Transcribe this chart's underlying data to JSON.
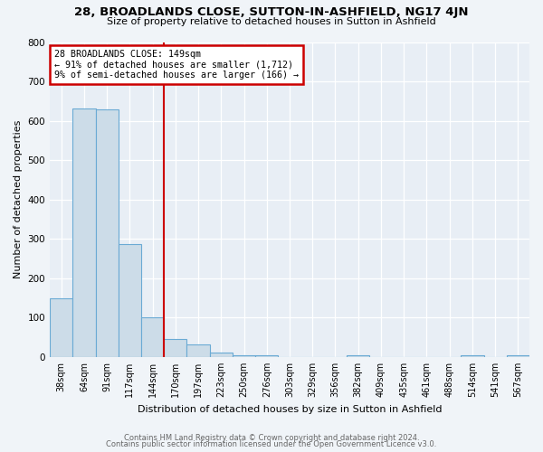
{
  "title": "28, BROADLANDS CLOSE, SUTTON-IN-ASHFIELD, NG17 4JN",
  "subtitle": "Size of property relative to detached houses in Sutton in Ashfield",
  "xlabel": "Distribution of detached houses by size in Sutton in Ashfield",
  "ylabel": "Number of detached properties",
  "annotation_line1": "28 BROADLANDS CLOSE: 149sqm",
  "annotation_line2": "← 91% of detached houses are smaller (1,712)",
  "annotation_line3": "9% of semi-detached houses are larger (166) →",
  "bar_labels": [
    "38sqm",
    "64sqm",
    "91sqm",
    "117sqm",
    "144sqm",
    "170sqm",
    "197sqm",
    "223sqm",
    "250sqm",
    "276sqm",
    "303sqm",
    "329sqm",
    "356sqm",
    "382sqm",
    "409sqm",
    "435sqm",
    "461sqm",
    "488sqm",
    "514sqm",
    "541sqm",
    "567sqm"
  ],
  "bar_values": [
    148,
    632,
    628,
    287,
    101,
    46,
    33,
    11,
    5,
    5,
    0,
    0,
    0,
    5,
    0,
    0,
    0,
    0,
    5,
    0,
    5
  ],
  "bar_color": "#ccdce8",
  "bar_edge_color": "#6aaad4",
  "marker_line_color": "#cc0000",
  "annotation_box_edge_color": "#cc0000",
  "ylim": [
    0,
    800
  ],
  "yticks": [
    0,
    100,
    200,
    300,
    400,
    500,
    600,
    700,
    800
  ],
  "background_color": "#f0f4f8",
  "plot_bg_color": "#e8eef5",
  "grid_color": "#ffffff",
  "footer_line1": "Contains HM Land Registry data © Crown copyright and database right 2024.",
  "footer_line2": "Contains public sector information licensed under the Open Government Licence v3.0."
}
